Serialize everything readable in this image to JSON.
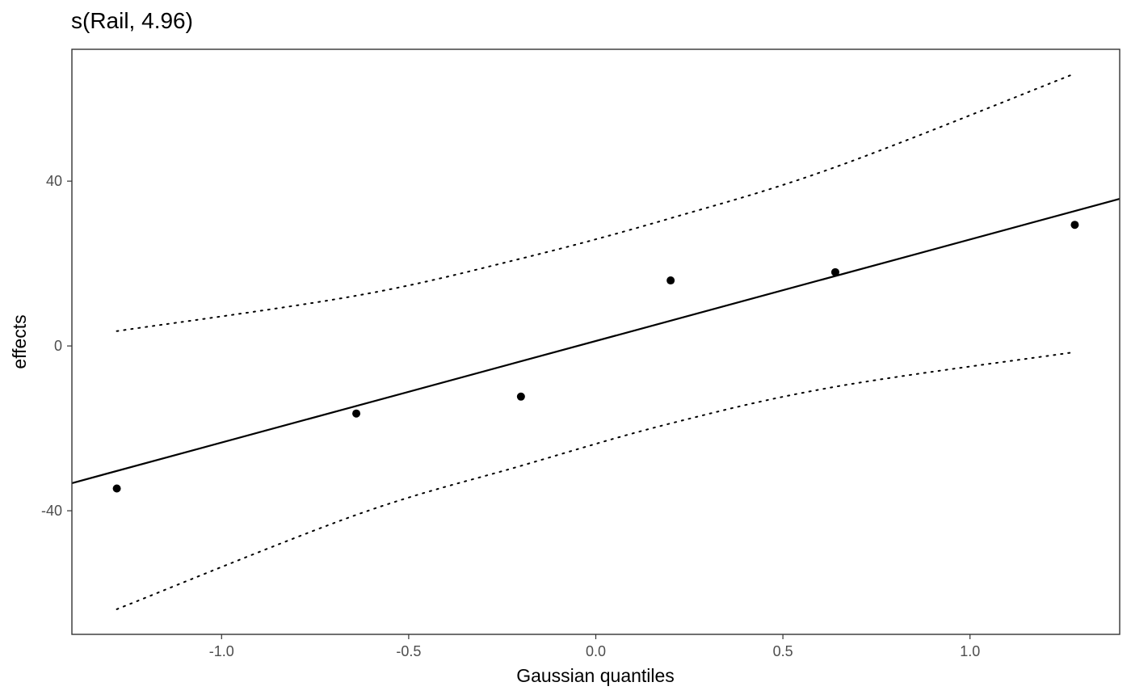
{
  "chart_data": {
    "type": "scatter",
    "title": "s(Rail, 4.96)",
    "xlabel": "Gaussian quantiles",
    "ylabel": "effects",
    "xlim": [
      -1.4,
      1.4
    ],
    "ylim": [
      -70,
      72
    ],
    "x_ticks": [
      {
        "value": -1.0,
        "label": "-1.0"
      },
      {
        "value": -0.5,
        "label": "-0.5"
      },
      {
        "value": 0.0,
        "label": "0.0"
      },
      {
        "value": 0.5,
        "label": "0.5"
      },
      {
        "value": 1.0,
        "label": "1.0"
      }
    ],
    "y_ticks": [
      {
        "value": -40,
        "label": "-40"
      },
      {
        "value": 0,
        "label": "0"
      },
      {
        "value": 40,
        "label": "40"
      }
    ],
    "grid": false,
    "legend": "none",
    "points": {
      "x": [
        -1.28,
        -0.64,
        -0.2,
        0.2,
        0.64,
        1.28
      ],
      "y": [
        -34.6,
        -16.4,
        -12.3,
        15.9,
        17.9,
        29.4
      ]
    },
    "reference_line": {
      "style": "solid",
      "x": [
        -1.4,
        1.4
      ],
      "y": [
        -33.3,
        35.7
      ]
    },
    "confidence_band": {
      "style": "dotted",
      "x": [
        -1.28,
        -0.64,
        -0.2,
        0.2,
        0.64,
        1.28
      ],
      "upper": [
        3.6,
        12.2,
        21.2,
        31.0,
        43.4,
        66.1
      ],
      "lower": [
        -63.9,
        -41.0,
        -29.1,
        -18.8,
        -9.9,
        -1.5
      ]
    },
    "colors": {
      "points": "#000000",
      "lines": "#000000",
      "panel_border": "#333333",
      "tick_text": "#4d4d4d",
      "background": "#ffffff"
    }
  }
}
